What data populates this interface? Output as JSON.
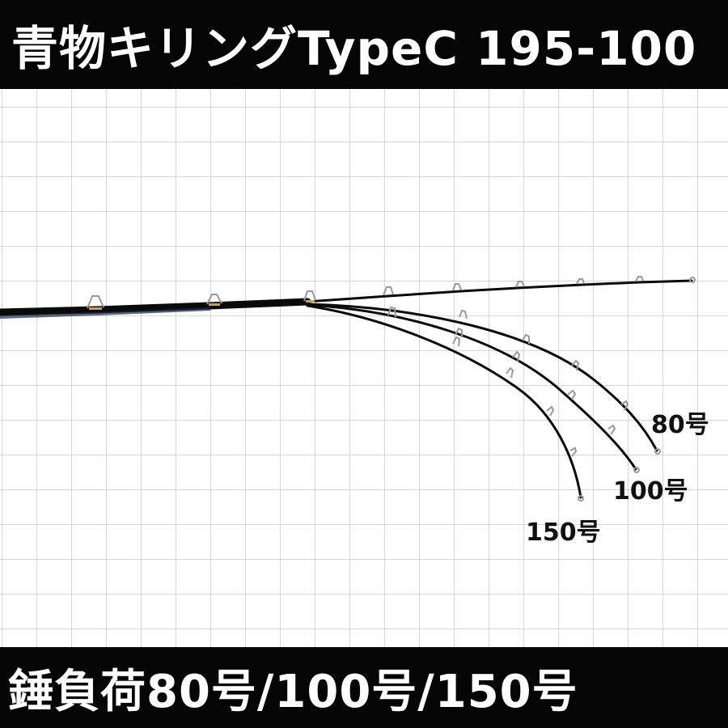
{
  "header": {
    "title": "青物キリングTypeC 195-100"
  },
  "footer": {
    "caption": "錘負荷80号/100号/150号"
  },
  "diagram": {
    "labels": {
      "load_80": "80号",
      "load_100": "100号",
      "load_150": "150号"
    }
  },
  "colors": {
    "banner_background": "#050505",
    "banner_text": "#ffffff",
    "grid_line": "#d6d6d6",
    "rod_blank": "#0a0a0a",
    "guide_frame": "#9a9a9a",
    "guide_accent": "#c8a060"
  }
}
